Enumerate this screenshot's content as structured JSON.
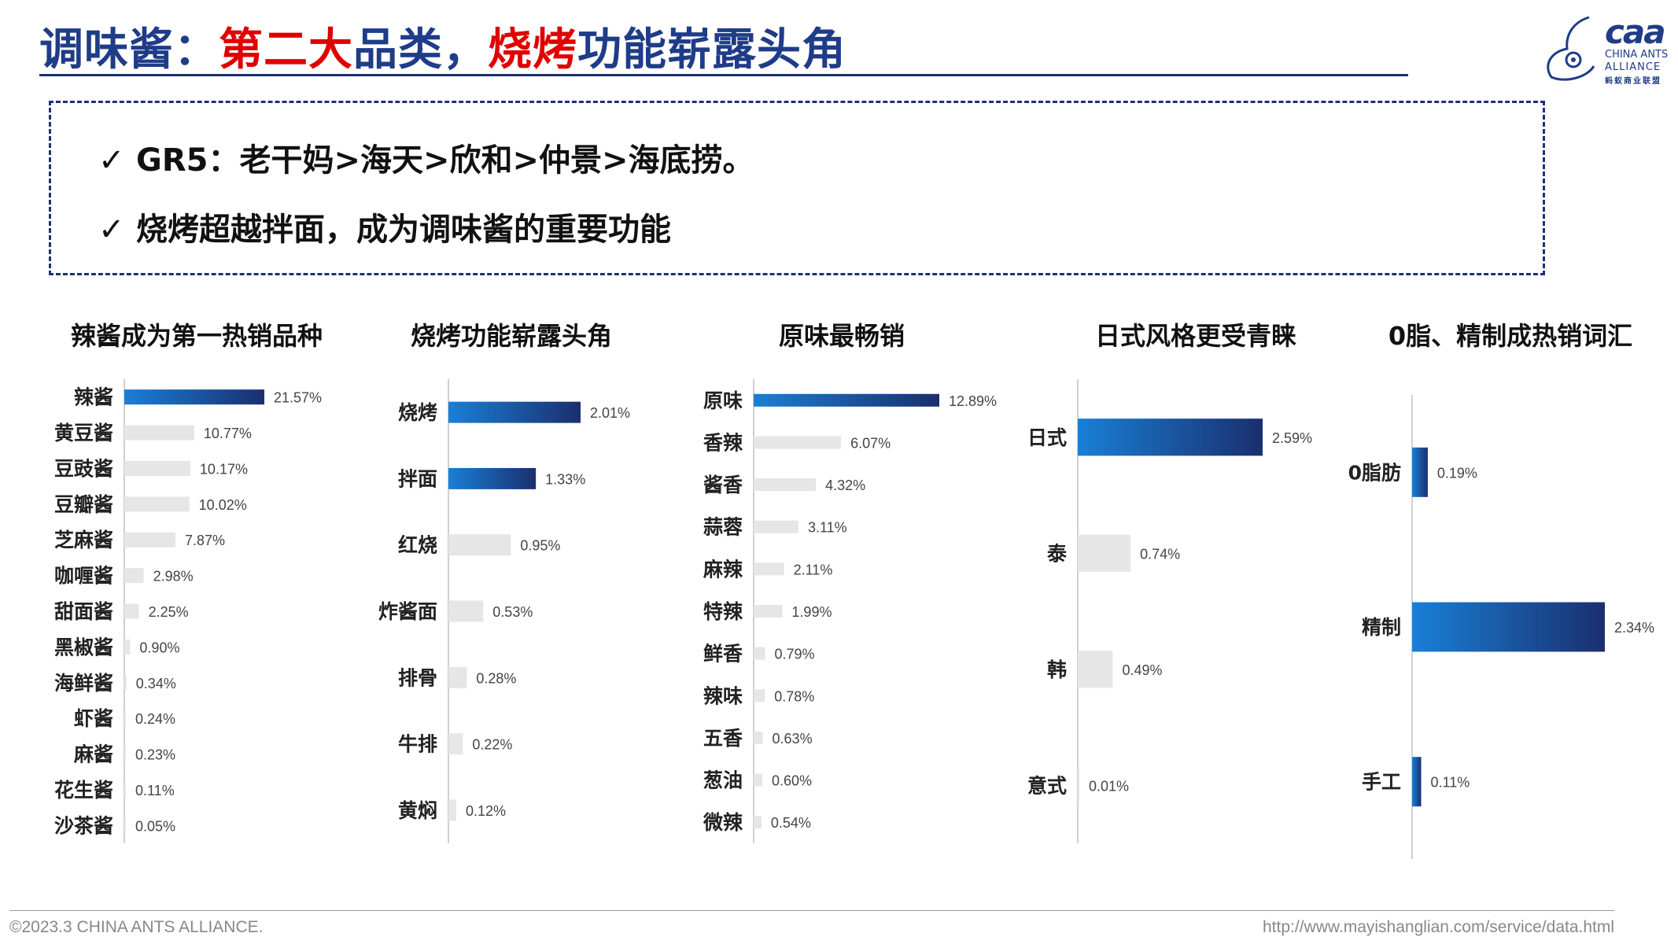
{
  "header": {
    "title_prefix": "调味酱：",
    "title_highlight_1": "第二大",
    "title_middle": "品类，",
    "title_highlight_2": "烧烤",
    "title_suffix": "功能崭露头角"
  },
  "logo": {
    "mark": "caa",
    "line1": "CHINA ANTS",
    "line2": "ALLIANCE",
    "line3": "蚂蚁商业联盟"
  },
  "summary": {
    "check_icon": "✓",
    "points": [
      "GR5：老干妈>海天>欣和>仲景>海底捞。",
      "烧烤超越拌面，成为调味酱的重要功能"
    ]
  },
  "colors": {
    "title_blue": "#1f3c88",
    "highlight_red": "#e00000",
    "bar_gradient_start": "#1a7fd6",
    "bar_gradient_end": "#1a2f6e",
    "bar_gray": "#e6e6e6",
    "axis_line": "#bfbfbf"
  },
  "chart_data": [
    {
      "type": "bar",
      "orientation": "horizontal",
      "title": "辣酱成为第一热销品种",
      "categories": [
        "辣酱",
        "黄豆酱",
        "豆豉酱",
        "豆瓣酱",
        "芝麻酱",
        "咖喱酱",
        "甜面酱",
        "黑椒酱",
        "海鲜酱",
        "虾酱",
        "麻酱",
        "花生酱",
        "沙茶酱"
      ],
      "values": [
        21.57,
        10.77,
        10.17,
        10.02,
        7.87,
        2.98,
        2.25,
        0.9,
        0.34,
        0.24,
        0.23,
        0.11,
        0.05
      ],
      "labels": [
        "21.57%",
        "10.77%",
        "10.17%",
        "10.02%",
        "7.87%",
        "2.98%",
        "2.25%",
        "0.90%",
        "0.34%",
        "0.24%",
        "0.23%",
        "0.11%",
        "0.05%"
      ],
      "highlight": [
        0
      ],
      "xlim": [
        0,
        21.57
      ]
    },
    {
      "type": "bar",
      "orientation": "horizontal",
      "title": "烧烤功能崭露头角",
      "categories": [
        "烧烤",
        "拌面",
        "红烧",
        "炸酱面",
        "排骨",
        "牛排",
        "黄焖"
      ],
      "values": [
        2.01,
        1.33,
        0.95,
        0.53,
        0.28,
        0.22,
        0.12
      ],
      "labels": [
        "2.01%",
        "1.33%",
        "0.95%",
        "0.53%",
        "0.28%",
        "0.22%",
        "0.12%"
      ],
      "highlight": [
        0,
        1
      ],
      "xlim": [
        0,
        2.01
      ]
    },
    {
      "type": "bar",
      "orientation": "horizontal",
      "title": "原味最畅销",
      "categories": [
        "原味",
        "香辣",
        "酱香",
        "蒜蓉",
        "麻辣",
        "特辣",
        "鲜香",
        "辣味",
        "五香",
        "葱油",
        "微辣"
      ],
      "values": [
        12.89,
        6.07,
        4.32,
        3.11,
        2.11,
        1.99,
        0.79,
        0.78,
        0.63,
        0.6,
        0.54
      ],
      "labels": [
        "12.89%",
        "6.07%",
        "4.32%",
        "3.11%",
        "2.11%",
        "1.99%",
        "0.79%",
        "0.78%",
        "0.63%",
        "0.60%",
        "0.54%"
      ],
      "highlight": [
        0
      ],
      "xlim": [
        0,
        12.89
      ]
    },
    {
      "type": "bar",
      "orientation": "horizontal",
      "title": "日式风格更受青睐",
      "categories": [
        "日式",
        "泰",
        "韩",
        "意式"
      ],
      "values": [
        2.59,
        0.74,
        0.49,
        0.01
      ],
      "labels": [
        "2.59%",
        "0.74%",
        "0.49%",
        "0.01%"
      ],
      "highlight": [
        0
      ],
      "xlim": [
        0,
        2.59
      ]
    },
    {
      "type": "bar",
      "orientation": "horizontal",
      "title": "0脂、精制成热销词汇",
      "categories": [
        "0脂肪",
        "精制",
        "手工"
      ],
      "values": [
        0.19,
        2.34,
        0.11
      ],
      "labels": [
        "0.19%",
        "2.34%",
        "0.11%"
      ],
      "highlight": [
        0,
        1,
        2
      ],
      "xlim": [
        0,
        2.34
      ]
    }
  ],
  "footer": {
    "copyright": "©2023.3 CHINA ANTS ALLIANCE.",
    "url": "http://www.mayishanglian.com/service/data.html"
  }
}
